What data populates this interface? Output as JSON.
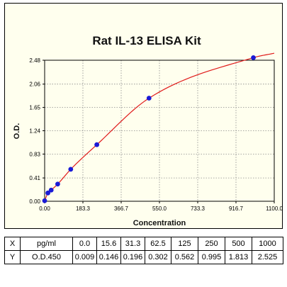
{
  "chart_data": {
    "type": "scatter",
    "title": "Rat IL-13 ELISA Kit",
    "xlabel": "Concentration",
    "ylabel": "O.D.",
    "xlim": [
      0,
      1100
    ],
    "ylim": [
      0,
      2.48
    ],
    "x_ticks": [
      "0.00",
      "183.3",
      "366.7",
      "550.0",
      "733.3",
      "916.7",
      "1100.0"
    ],
    "x_tick_values": [
      0,
      183.3,
      366.7,
      550.0,
      733.3,
      916.7,
      1100.0
    ],
    "y_ticks": [
      "0.00",
      "0.41",
      "0.83",
      "1.24",
      "1.65",
      "2.06",
      "2.48"
    ],
    "y_tick_values": [
      0,
      0.41,
      0.83,
      1.24,
      1.65,
      2.06,
      2.48
    ],
    "grid": true,
    "series": [
      {
        "x": [
          0,
          15.6,
          31.3,
          62.5,
          125,
          250,
          500,
          1000
        ],
        "y": [
          0.009,
          0.146,
          0.196,
          0.302,
          0.562,
          0.995,
          1.813,
          2.525
        ]
      }
    ],
    "colors": {
      "points": "#1a1ad6",
      "curve": "#e01a1a",
      "grid": "#8c8c8c",
      "background": "#ffffee"
    }
  },
  "table": {
    "rows": [
      {
        "axis": "X",
        "label": "pg/ml",
        "values": [
          "0.0",
          "15.6",
          "31.3",
          "62.5",
          "125",
          "250",
          "500",
          "1000"
        ]
      },
      {
        "axis": "Y",
        "label": "O.D.450",
        "values": [
          "0.009",
          "0.146",
          "0.196",
          "0.302",
          "0.562",
          "0.995",
          "1.813",
          "2.525"
        ]
      }
    ]
  }
}
